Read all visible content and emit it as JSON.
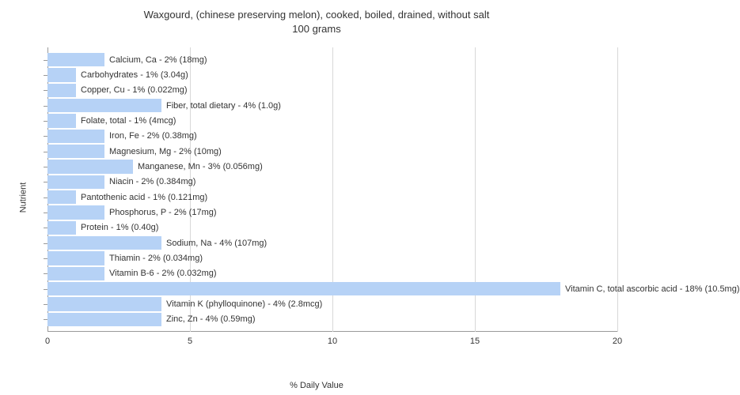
{
  "chart": {
    "type": "bar-horizontal",
    "title_line1": "Waxgourd, (chinese preserving melon), cooked, boiled, drained, without salt",
    "title_line2": "100 grams",
    "title_fontsize": 13,
    "x_axis_label": "% Daily Value",
    "y_axis_label": "Nutrient",
    "axis_label_fontsize": 11,
    "tick_fontsize": 11,
    "bar_label_fontsize": 11,
    "xlim": [
      0,
      20
    ],
    "x_ticks": [
      0,
      5,
      10,
      15,
      20
    ],
    "background_color": "#ffffff",
    "bar_color": "#b6d2f6",
    "grid_color": "#d8d8d8",
    "axis_color": "#999999",
    "text_color": "#333333",
    "bars": [
      {
        "label": "Calcium, Ca - 2% (18mg)",
        "value": 2
      },
      {
        "label": "Carbohydrates - 1% (3.04g)",
        "value": 1
      },
      {
        "label": "Copper, Cu - 1% (0.022mg)",
        "value": 1
      },
      {
        "label": "Fiber, total dietary - 4% (1.0g)",
        "value": 4
      },
      {
        "label": "Folate, total - 1% (4mcg)",
        "value": 1
      },
      {
        "label": "Iron, Fe - 2% (0.38mg)",
        "value": 2
      },
      {
        "label": "Magnesium, Mg - 2% (10mg)",
        "value": 2
      },
      {
        "label": "Manganese, Mn - 3% (0.056mg)",
        "value": 3
      },
      {
        "label": "Niacin - 2% (0.384mg)",
        "value": 2
      },
      {
        "label": "Pantothenic acid - 1% (0.121mg)",
        "value": 1
      },
      {
        "label": "Phosphorus, P - 2% (17mg)",
        "value": 2
      },
      {
        "label": "Protein - 1% (0.40g)",
        "value": 1
      },
      {
        "label": "Sodium, Na - 4% (107mg)",
        "value": 4
      },
      {
        "label": "Thiamin - 2% (0.034mg)",
        "value": 2
      },
      {
        "label": "Vitamin B-6 - 2% (0.032mg)",
        "value": 2
      },
      {
        "label": "Vitamin C, total ascorbic acid - 18% (10.5mg)",
        "value": 18
      },
      {
        "label": "Vitamin K (phylloquinone) - 4% (2.8mcg)",
        "value": 4
      },
      {
        "label": "Zinc, Zn - 4% (0.59mg)",
        "value": 4
      }
    ]
  }
}
